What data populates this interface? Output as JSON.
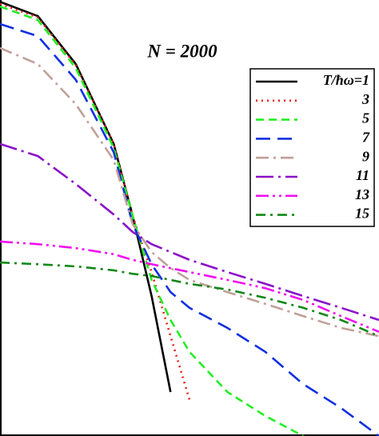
{
  "chart_data": {
    "type": "line",
    "title": "N = 2000",
    "x": [
      0,
      0.1,
      0.2,
      0.3,
      0.35,
      0.4,
      0.45,
      0.5,
      0.6,
      0.7,
      0.8,
      0.9,
      1.0
    ],
    "xlim": [
      0,
      1
    ],
    "ylim": [
      0,
      1
    ],
    "series": [
      {
        "name": "T/ħω=1",
        "color": "#000000",
        "values": [
          0.996,
          0.963,
          0.853,
          0.67,
          0.505,
          0.321,
          0.101,
          null,
          null,
          null,
          null,
          null,
          null
        ]
      },
      {
        "name": "3",
        "color": "#e8201a",
        "values": [
          0.991,
          0.96,
          0.85,
          0.67,
          0.505,
          0.376,
          0.229,
          0.083,
          null,
          null,
          null,
          null,
          null
        ]
      },
      {
        "name": "5",
        "color": "#22ee22",
        "values": [
          0.985,
          0.954,
          0.844,
          0.661,
          0.505,
          0.358,
          0.266,
          0.193,
          0.101,
          0.046,
          0.0,
          null,
          null
        ]
      },
      {
        "name": "7",
        "color": "#1030e0",
        "values": [
          0.945,
          0.917,
          0.817,
          0.651,
          0.486,
          0.394,
          0.33,
          0.294,
          0.248,
          0.193,
          0.119,
          0.064,
          0.0
        ]
      },
      {
        "name": "9",
        "color": "#c0a098",
        "values": [
          0.89,
          0.853,
          0.761,
          0.633,
          0.486,
          0.422,
          0.385,
          0.358,
          0.33,
          0.303,
          0.275,
          0.248,
          0.229
        ]
      },
      {
        "name": "11",
        "color": "#8a10c8",
        "values": [
          0.67,
          0.642,
          0.578,
          0.508,
          0.468,
          0.44,
          0.422,
          0.404,
          0.376,
          0.349,
          0.321,
          0.294,
          0.266
        ]
      },
      {
        "name": "13",
        "color": "#f010f0",
        "values": [
          0.446,
          0.44,
          0.431,
          0.417,
          0.404,
          0.394,
          0.385,
          0.376,
          0.358,
          0.339,
          0.312,
          0.275,
          0.239
        ]
      },
      {
        "name": "15",
        "color": "#108818",
        "values": [
          0.398,
          0.394,
          0.389,
          0.38,
          0.372,
          0.367,
          0.358,
          0.349,
          0.336,
          0.317,
          0.294,
          0.266,
          0.229
        ]
      }
    ]
  }
}
